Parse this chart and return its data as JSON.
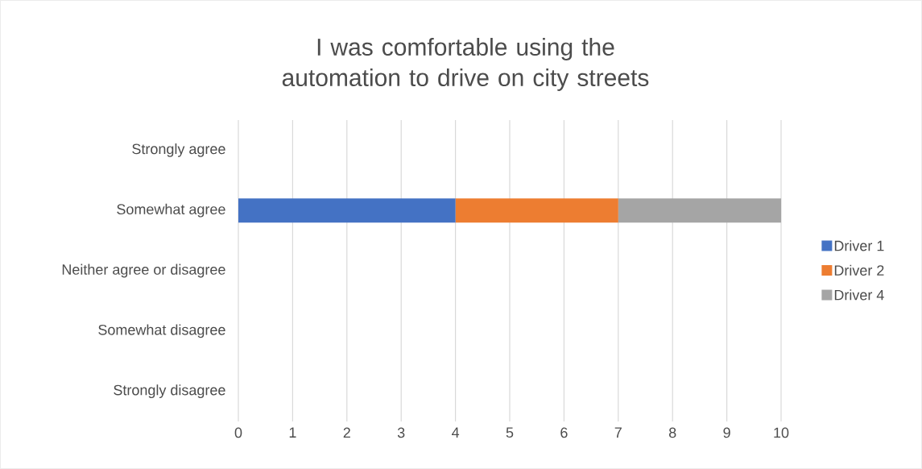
{
  "chart_data": {
    "type": "bar",
    "orientation": "horizontal",
    "stacked": true,
    "title": "I was comfortable using the automation to drive on city streets",
    "categories": [
      "Strongly agree",
      "Somewhat agree",
      "Neither agree or disagree",
      "Somewhat disagree",
      "Strongly disagree"
    ],
    "series": [
      {
        "name": "Driver 1",
        "color": "#4472c4",
        "values": [
          null,
          4,
          null,
          null,
          null
        ]
      },
      {
        "name": "Driver 2",
        "color": "#ed7d31",
        "values": [
          null,
          3,
          null,
          null,
          null
        ]
      },
      {
        "name": "Driver 4",
        "color": "#a5a5a5",
        "values": [
          null,
          3,
          null,
          null,
          null
        ]
      }
    ],
    "xlim": [
      0,
      10
    ],
    "xticks": [
      0,
      1,
      2,
      3,
      4,
      5,
      6,
      7,
      8,
      9,
      10
    ],
    "grid": "x",
    "legend": "right"
  }
}
